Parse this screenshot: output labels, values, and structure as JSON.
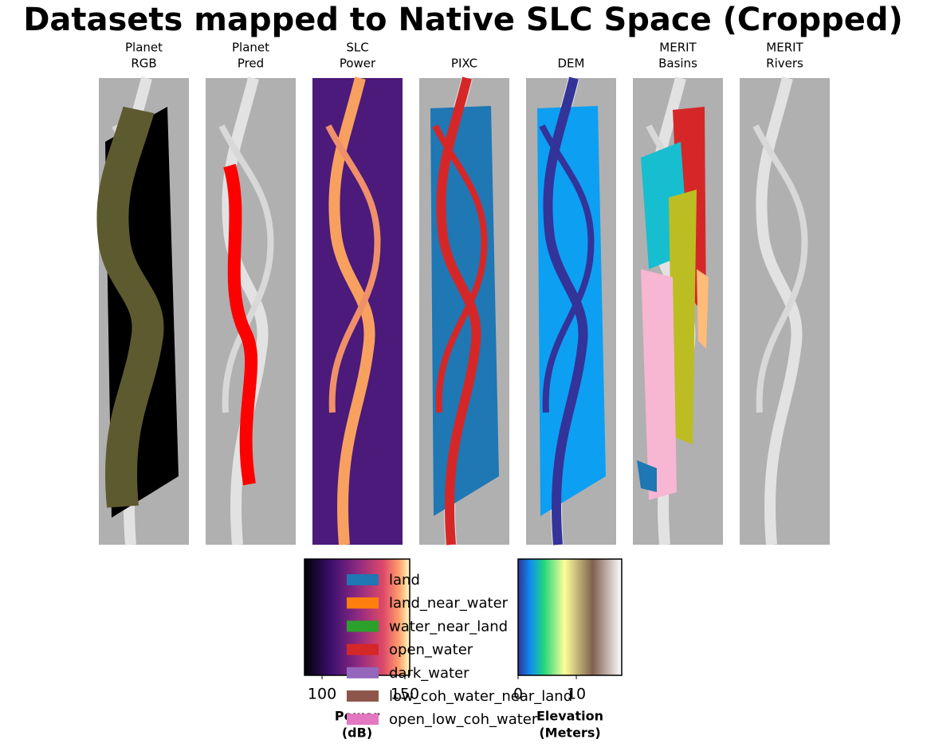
{
  "title": "Datasets mapped to Native SLC Space (Cropped)",
  "panels": [
    {
      "label": [
        "Planet",
        "RGB"
      ]
    },
    {
      "label": [
        "Planet",
        "Pred"
      ]
    },
    {
      "label": [
        "SLC",
        "Power"
      ]
    },
    {
      "label": [
        "PIXC"
      ]
    },
    {
      "label": [
        "DEM"
      ]
    },
    {
      "label": [
        "MERIT",
        "Basins"
      ]
    },
    {
      "label": [
        "MERIT",
        "Rivers"
      ]
    }
  ],
  "colorbars": [
    {
      "label": [
        "Power",
        "(dB)"
      ],
      "lim": [
        89.4,
        152.9
      ],
      "ticks": [
        100,
        150
      ]
    },
    {
      "label": [
        "Elevation",
        "(Meters)"
      ],
      "lim": [
        0,
        17.8
      ],
      "ticks": [
        0,
        10
      ]
    }
  ],
  "legend": [
    {
      "name": "land",
      "color": "#1f77b4"
    },
    {
      "name": "land_near_water",
      "color": "#ff7f0e"
    },
    {
      "name": "water_near_land",
      "color": "#2ca02c"
    },
    {
      "name": "open_water",
      "color": "#d62728"
    },
    {
      "name": "dark_water",
      "color": "#9467bd"
    },
    {
      "name": "low_coh_water_near_land",
      "color": "#8c564b"
    },
    {
      "name": "open_low_coh_water",
      "color": "#e377c2"
    }
  ]
}
